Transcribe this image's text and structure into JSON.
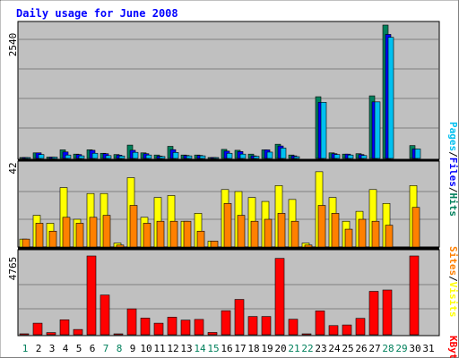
{
  "chart_data": {
    "type": "bar",
    "title": "Daily usage for June 2008",
    "days": [
      "1",
      "2",
      "3",
      "4",
      "5",
      "6",
      "7",
      "8",
      "9",
      "10",
      "11",
      "12",
      "13",
      "14",
      "15",
      "16",
      "17",
      "18",
      "19",
      "20",
      "21",
      "22",
      "23",
      "24",
      "25",
      "26",
      "27",
      "28",
      "29",
      "30",
      "31"
    ],
    "weekend_days": [
      "1",
      "7",
      "8",
      "14",
      "15",
      "21",
      "22",
      "28",
      "29"
    ],
    "panels": {
      "top": {
        "max_label": "2540",
        "ymax": 2540,
        "legend": [
          "Pages",
          "/",
          "Files",
          "/",
          "Hits"
        ],
        "series": [
          {
            "name": "Pages",
            "color": "#00c0f0",
            "values": [
              2,
              74,
              24,
              65,
              49,
              98,
              54,
              47,
              116,
              65,
              37,
              114,
              49,
              49,
              16,
              98,
              82,
              41,
              120,
              197,
              34,
              0,
              1069,
              74,
              65,
              55,
              1077,
              2306,
              0,
              180,
              0
            ]
          },
          {
            "name": "Files",
            "color": "#0000ff",
            "values": [
              4,
              106,
              24,
              123,
              74,
              155,
              90,
              63,
              155,
              90,
              45,
              167,
              57,
              57,
              16,
              139,
              131,
              49,
              163,
              237,
              49,
              0,
              1069,
              90,
              82,
              74,
              1077,
              2362,
              0,
              180,
              0
            ]
          },
          {
            "name": "Hits",
            "color": "#00805c",
            "values": [
              4,
              106,
              24,
              163,
              82,
              164,
              98,
              74,
              254,
              106,
              65,
              230,
              65,
              65,
              16,
              172,
              155,
              82,
              163,
              270,
              65,
              0,
              1175,
              106,
              82,
              90,
              1192,
              2540,
              0,
              245,
              0
            ]
          }
        ]
      },
      "middle": {
        "max_label": "42",
        "ymax": 42,
        "legend": [
          "Sites",
          "/",
          "Visits"
        ],
        "series": [
          {
            "name": "Sites",
            "color": "#ff8000",
            "values": [
              4,
              12,
              8,
              15,
              12,
              15,
              16,
              1,
              21,
              12,
              13,
              13,
              13,
              8,
              3,
              22,
              16,
              13,
              14,
              17,
              13,
              1,
              21,
              17,
              9,
              14,
              13,
              11,
              0,
              20,
              0
            ]
          },
          {
            "name": "Visits",
            "color": "#ffff00",
            "values": [
              4,
              16,
              12,
              30,
              14,
              27,
              27,
              2,
              35,
              15,
              25,
              26,
              13,
              17,
              3,
              29,
              28,
              25,
              23,
              31,
              24,
              2,
              38,
              25,
              13,
              18,
              29,
              22,
              0,
              31,
              0
            ]
          }
        ]
      },
      "bottom": {
        "max_label": "4765",
        "ymax": 4765,
        "legend": [
          "KBytes"
        ],
        "series": [
          {
            "name": "KBytes",
            "color": "#ff0000",
            "values": [
              56,
              699,
              130,
              905,
              318,
              4765,
              2402,
              41,
              1564,
              1009,
              698,
              1064,
              885,
              926,
              137,
              1454,
              2136,
              1103,
              1103,
              4619,
              938,
              41,
              1443,
              553,
              591,
              991,
              2625,
              2707,
              0,
              4765,
              0
            ]
          }
        ]
      }
    },
    "colors": {
      "background": "#ffffff",
      "plot_area": "#c0c0c0",
      "title": "#0000ff",
      "day_weekday": "#000000",
      "day_weekend": "#00805c",
      "max_label": "#000000",
      "separator": "#000000"
    }
  }
}
